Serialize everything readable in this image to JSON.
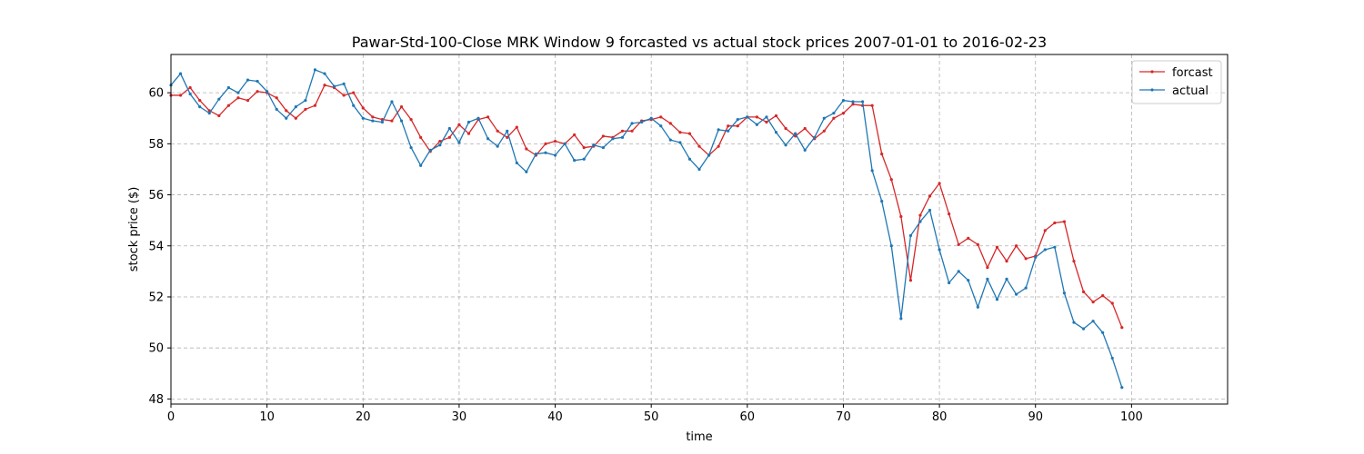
{
  "chart_data": {
    "type": "line",
    "title": "Pawar-Std-100-Close MRK Window 9 forcasted vs actual stock prices 2007-01-01 to 2016-02-23",
    "xlabel": "time",
    "ylabel": "stock price ($)",
    "xlim": [
      0,
      110
    ],
    "ylim": [
      47.8,
      61.5
    ],
    "x_ticks": [
      0,
      10,
      20,
      30,
      40,
      50,
      60,
      70,
      80,
      90,
      100
    ],
    "y_ticks": [
      48,
      50,
      52,
      54,
      56,
      58,
      60
    ],
    "grid": true,
    "legend_position": "top-right",
    "x": [
      0,
      1,
      2,
      3,
      4,
      5,
      6,
      7,
      8,
      9,
      10,
      11,
      12,
      13,
      14,
      15,
      16,
      17,
      18,
      19,
      20,
      21,
      22,
      23,
      24,
      25,
      26,
      27,
      28,
      29,
      30,
      31,
      32,
      33,
      34,
      35,
      36,
      37,
      38,
      39,
      40,
      41,
      42,
      43,
      44,
      45,
      46,
      47,
      48,
      49,
      50,
      51,
      52,
      53,
      54,
      55,
      56,
      57,
      58,
      59,
      60,
      61,
      62,
      63,
      64,
      65,
      66,
      67,
      68,
      69,
      70,
      71,
      72,
      73,
      74,
      75,
      76,
      77,
      78,
      79,
      80,
      81,
      82,
      83,
      84,
      85,
      86,
      87,
      88,
      89,
      90,
      91,
      92,
      93,
      94,
      95,
      96,
      97,
      98,
      99
    ],
    "series": [
      {
        "name": "forcast",
        "color": "#d62728",
        "values": [
          59.9,
          59.9,
          60.2,
          59.7,
          59.3,
          59.1,
          59.5,
          59.8,
          59.7,
          60.05,
          60.0,
          59.8,
          59.3,
          59.0,
          59.35,
          59.5,
          60.3,
          60.2,
          59.9,
          60.0,
          59.4,
          59.05,
          58.95,
          58.9,
          59.45,
          58.95,
          58.25,
          57.7,
          58.1,
          58.25,
          58.75,
          58.4,
          58.95,
          59.05,
          58.5,
          58.25,
          58.65,
          57.8,
          57.55,
          58.0,
          58.1,
          58.0,
          58.35,
          57.85,
          57.9,
          58.3,
          58.25,
          58.5,
          58.5,
          58.9,
          58.95,
          59.05,
          58.8,
          58.45,
          58.4,
          57.9,
          57.55,
          57.9,
          58.7,
          58.7,
          59.05,
          59.05,
          58.85,
          59.1,
          58.6,
          58.3,
          58.6,
          58.2,
          58.5,
          59.0,
          59.2,
          59.55,
          59.5,
          59.5,
          57.6,
          56.6,
          55.15,
          52.65,
          55.2,
          55.95,
          56.45,
          55.25,
          54.05,
          54.3,
          54.05,
          53.15,
          53.95,
          53.4,
          54.0,
          53.5,
          53.6,
          54.6,
          54.9,
          54.95,
          53.4,
          52.2,
          51.8,
          52.05,
          51.75,
          50.8
        ]
      },
      {
        "name": "actual",
        "color": "#1f77b4",
        "values": [
          60.3,
          60.75,
          59.95,
          59.45,
          59.2,
          59.75,
          60.2,
          60.0,
          60.5,
          60.45,
          60.05,
          59.35,
          59.0,
          59.45,
          59.7,
          60.9,
          60.75,
          60.25,
          60.35,
          59.5,
          59.0,
          58.9,
          58.85,
          59.65,
          58.9,
          57.85,
          57.15,
          57.75,
          57.95,
          58.6,
          58.05,
          58.85,
          59.0,
          58.2,
          57.9,
          58.5,
          57.25,
          56.9,
          57.6,
          57.65,
          57.55,
          58.0,
          57.35,
          57.4,
          57.95,
          57.85,
          58.2,
          58.25,
          58.8,
          58.85,
          59.0,
          58.7,
          58.15,
          58.05,
          57.4,
          57.0,
          57.55,
          58.55,
          58.5,
          58.95,
          59.05,
          58.75,
          59.05,
          58.45,
          57.95,
          58.4,
          57.75,
          58.25,
          59.0,
          59.2,
          59.7,
          59.65,
          59.65,
          56.95,
          55.75,
          54.0,
          51.15,
          54.4,
          54.95,
          55.4,
          53.85,
          52.55,
          53.0,
          52.65,
          51.6,
          52.7,
          51.9,
          52.7,
          52.1,
          52.35,
          53.55,
          53.85,
          53.95,
          52.15,
          51.0,
          50.75,
          51.05,
          50.6,
          49.6,
          48.45
        ]
      }
    ]
  }
}
